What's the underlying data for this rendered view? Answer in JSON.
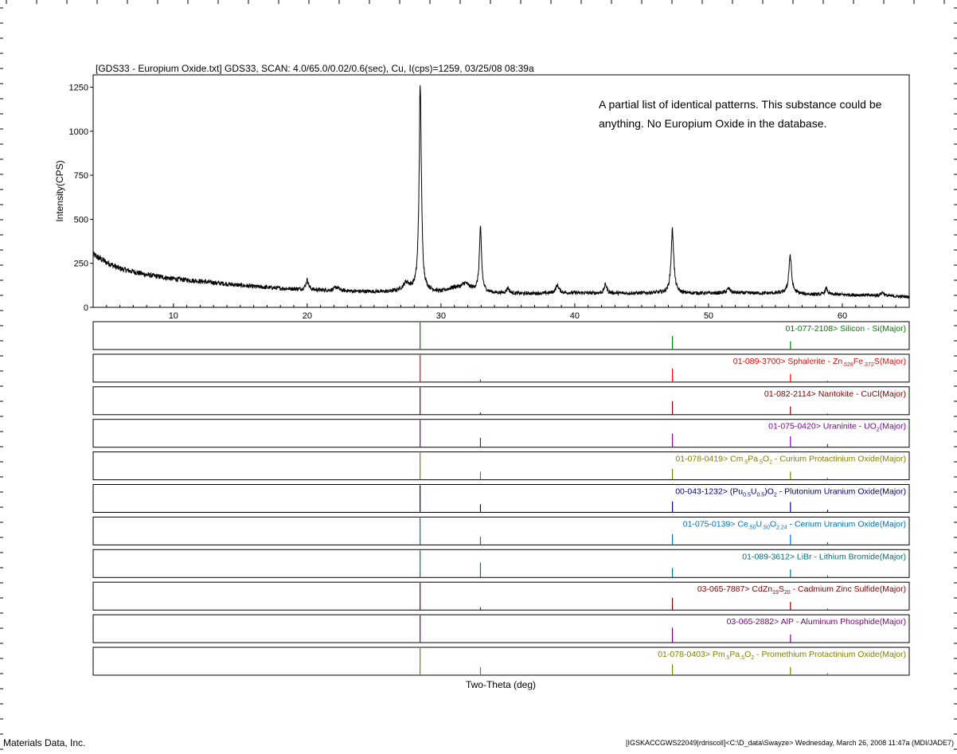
{
  "chart_data": {
    "type": "line",
    "title": "[GDS33 - Europium Oxide.txt] GDS33, SCAN: 4.0/65.0/0.02/0.6(sec), Cu, I(cps)=1259, 03/25/08 08:39a",
    "annotation_lines": [
      "A partial list of identical patterns.  This substance could be",
      "anything.  No Europium Oxide in the database."
    ],
    "ylabel": "Intensity(CPS)",
    "xlabel": "Two-Theta (deg)",
    "xlim": [
      4.0,
      65.0
    ],
    "ylim": [
      0,
      1320
    ],
    "xticks": [
      10,
      20,
      30,
      40,
      50,
      60
    ],
    "yticks": [
      0,
      250,
      500,
      750,
      1000,
      1250
    ],
    "grid": false,
    "baseline_points": [
      [
        4.0,
        300
      ],
      [
        5,
        255
      ],
      [
        6,
        220
      ],
      [
        8,
        185
      ],
      [
        10,
        162
      ],
      [
        12,
        148
      ],
      [
        14,
        132
      ],
      [
        16,
        118
      ],
      [
        18,
        108
      ],
      [
        20,
        100
      ],
      [
        22,
        95
      ],
      [
        24,
        90
      ],
      [
        26,
        88
      ],
      [
        27,
        95
      ],
      [
        28,
        100
      ],
      [
        29,
        92
      ],
      [
        30,
        88
      ],
      [
        31,
        112
      ],
      [
        32,
        110
      ],
      [
        33,
        90
      ],
      [
        34,
        82
      ],
      [
        36,
        78
      ],
      [
        38,
        80
      ],
      [
        40,
        82
      ],
      [
        42,
        80
      ],
      [
        44,
        80
      ],
      [
        46,
        82
      ],
      [
        48,
        80
      ],
      [
        50,
        80
      ],
      [
        52,
        82
      ],
      [
        54,
        80
      ],
      [
        56,
        80
      ],
      [
        58,
        72
      ],
      [
        60,
        72
      ],
      [
        62,
        68
      ],
      [
        64,
        62
      ],
      [
        65,
        60
      ]
    ],
    "peaks": [
      {
        "pos": 20.0,
        "height": 55,
        "width": 0.12
      },
      {
        "pos": 22.2,
        "height": 20,
        "width": 0.2
      },
      {
        "pos": 27.4,
        "height": 40,
        "width": 0.25
      },
      {
        "pos": 28.45,
        "height": 1160,
        "width": 0.1
      },
      {
        "pos": 31.8,
        "height": 25,
        "width": 0.25
      },
      {
        "pos": 32.95,
        "height": 350,
        "width": 0.1
      },
      {
        "pos": 35.0,
        "height": 30,
        "width": 0.12
      },
      {
        "pos": 38.7,
        "height": 45,
        "width": 0.15
      },
      {
        "pos": 42.3,
        "height": 50,
        "width": 0.12
      },
      {
        "pos": 47.3,
        "height": 355,
        "width": 0.12
      },
      {
        "pos": 51.5,
        "height": 25,
        "width": 0.15
      },
      {
        "pos": 56.1,
        "height": 215,
        "width": 0.12
      },
      {
        "pos": 58.8,
        "height": 35,
        "width": 0.12
      },
      {
        "pos": 63.0,
        "height": 20,
        "width": 0.15
      }
    ],
    "reference_patterns": [
      {
        "label_parts": [
          {
            "t": "01-077-2108> Silicon - Si(Major)"
          }
        ],
        "color": "#008000",
        "sticks": [
          [
            28.44,
            1.0
          ],
          [
            47.3,
            0.5
          ],
          [
            56.12,
            0.3
          ]
        ]
      },
      {
        "label_parts": [
          {
            "t": "01-089-3700> Sphalerite - Zn"
          },
          {
            "t": ".628",
            "sub": true
          },
          {
            "t": "Fe"
          },
          {
            "t": ".372",
            "sub": true
          },
          {
            "t": "S(Major)"
          }
        ],
        "color": "#ff0000",
        "sticks": [
          [
            28.44,
            1.0
          ],
          [
            32.95,
            0.1
          ],
          [
            47.3,
            0.5
          ],
          [
            56.12,
            0.3
          ],
          [
            58.9,
            0.05
          ]
        ]
      },
      {
        "label_parts": [
          {
            "t": "01-082-2114> Nantokite - CuCl(Major)"
          }
        ],
        "color": "#800000",
        "sticks": [
          [
            28.44,
            1.0
          ],
          [
            32.95,
            0.08
          ],
          [
            47.3,
            0.5
          ],
          [
            56.12,
            0.3
          ],
          [
            58.9,
            0.04
          ]
        ]
      },
      {
        "label_parts": [
          {
            "t": "01-075-0420> Uraninite - UO"
          },
          {
            "t": "2",
            "sub": true
          },
          {
            "t": "(Major)"
          }
        ],
        "color": "#8000a0",
        "sticks": [
          [
            28.44,
            1.0
          ],
          [
            32.95,
            0.35
          ],
          [
            47.3,
            0.5
          ],
          [
            56.12,
            0.4
          ],
          [
            58.9,
            0.12
          ]
        ]
      },
      {
        "label_parts": [
          {
            "t": "01-078-0419> Cm"
          },
          {
            "t": ".5",
            "sub": true
          },
          {
            "t": "Pa"
          },
          {
            "t": ".5",
            "sub": true
          },
          {
            "t": "O"
          },
          {
            "t": "2",
            "sub": true
          },
          {
            "t": " - Curium Protactinium Oxide(Major)"
          }
        ],
        "color": "#808000",
        "sticks": [
          [
            28.44,
            1.0
          ],
          [
            32.95,
            0.3
          ],
          [
            47.3,
            0.4
          ],
          [
            56.12,
            0.3
          ],
          [
            58.9,
            0.08
          ]
        ]
      },
      {
        "label_parts": [
          {
            "t": "00-043-1232> (Pu"
          },
          {
            "t": "0.5",
            "sub": true
          },
          {
            "t": "U"
          },
          {
            "t": "0.5",
            "sub": true
          },
          {
            "t": ")O"
          },
          {
            "t": "2",
            "sub": true
          },
          {
            "t": " - Plutonium Uranium Oxide(Major)"
          }
        ],
        "color": "#000080",
        "sticks": [
          [
            28.44,
            1.0
          ],
          [
            32.95,
            0.3
          ],
          [
            47.3,
            0.4
          ],
          [
            56.12,
            0.38
          ],
          [
            58.9,
            0.1
          ]
        ]
      },
      {
        "label_parts": [
          {
            "t": "01-075-0139> Ce"
          },
          {
            "t": ".50",
            "sub": true
          },
          {
            "t": "U"
          },
          {
            "t": ".50",
            "sub": true
          },
          {
            "t": "O"
          },
          {
            "t": "2.24",
            "sub": true
          },
          {
            "t": " - Cerium Uranium Oxide(Major)"
          }
        ],
        "color": "#0070c0",
        "sticks": [
          [
            28.44,
            1.0
          ],
          [
            32.95,
            0.3
          ],
          [
            47.3,
            0.4
          ],
          [
            56.12,
            0.38
          ],
          [
            58.9,
            0.1
          ]
        ]
      },
      {
        "label_parts": [
          {
            "t": "01-089-3612> LiBr - Lithium Bromide(Major)"
          }
        ],
        "color": "#007080",
        "sticks": [
          [
            28.44,
            1.0
          ],
          [
            32.95,
            0.55
          ],
          [
            47.3,
            0.35
          ],
          [
            56.12,
            0.3
          ],
          [
            58.9,
            0.08
          ]
        ]
      },
      {
        "label_parts": [
          {
            "t": "03-065-7887> CdZn"
          },
          {
            "t": "19",
            "sub": true
          },
          {
            "t": "S"
          },
          {
            "t": "20",
            "sub": true
          },
          {
            "t": " - Cadmium Zinc Sulfide(Major)"
          }
        ],
        "color": "#800000",
        "sticks": [
          [
            28.44,
            1.0
          ],
          [
            32.95,
            0.1
          ],
          [
            47.3,
            0.45
          ],
          [
            56.12,
            0.3
          ],
          [
            58.9,
            0.05
          ]
        ]
      },
      {
        "label_parts": [
          {
            "t": "03-065-2882> AlP - Aluminum Phosphide(Major)"
          }
        ],
        "color": "#800080",
        "sticks": [
          [
            28.44,
            1.0
          ],
          [
            47.3,
            0.55
          ],
          [
            56.12,
            0.3
          ]
        ]
      },
      {
        "label_parts": [
          {
            "t": "01-078-0403> Pm"
          },
          {
            "t": ".5",
            "sub": true
          },
          {
            "t": "Pa"
          },
          {
            "t": ".5",
            "sub": true
          },
          {
            "t": "O"
          },
          {
            "t": "2",
            "sub": true
          },
          {
            "t": " - Promethium Protactinium Oxide(Major)"
          }
        ],
        "color": "#808000",
        "sticks": [
          [
            28.44,
            1.0
          ],
          [
            32.95,
            0.3
          ],
          [
            47.3,
            0.4
          ],
          [
            56.12,
            0.3
          ],
          [
            58.9,
            0.08
          ]
        ]
      }
    ]
  },
  "footer": {
    "left": "Materials Data, Inc.",
    "right": "[IGSKACCGWS22049|rdriscoll]<C:\\D_data\\Swayze> Wednesday, March 26, 2008 11:47a (MDI/JADE7)"
  },
  "colors": {
    "trace": "#000000",
    "frame": "#000000",
    "background": "#ffffff"
  }
}
